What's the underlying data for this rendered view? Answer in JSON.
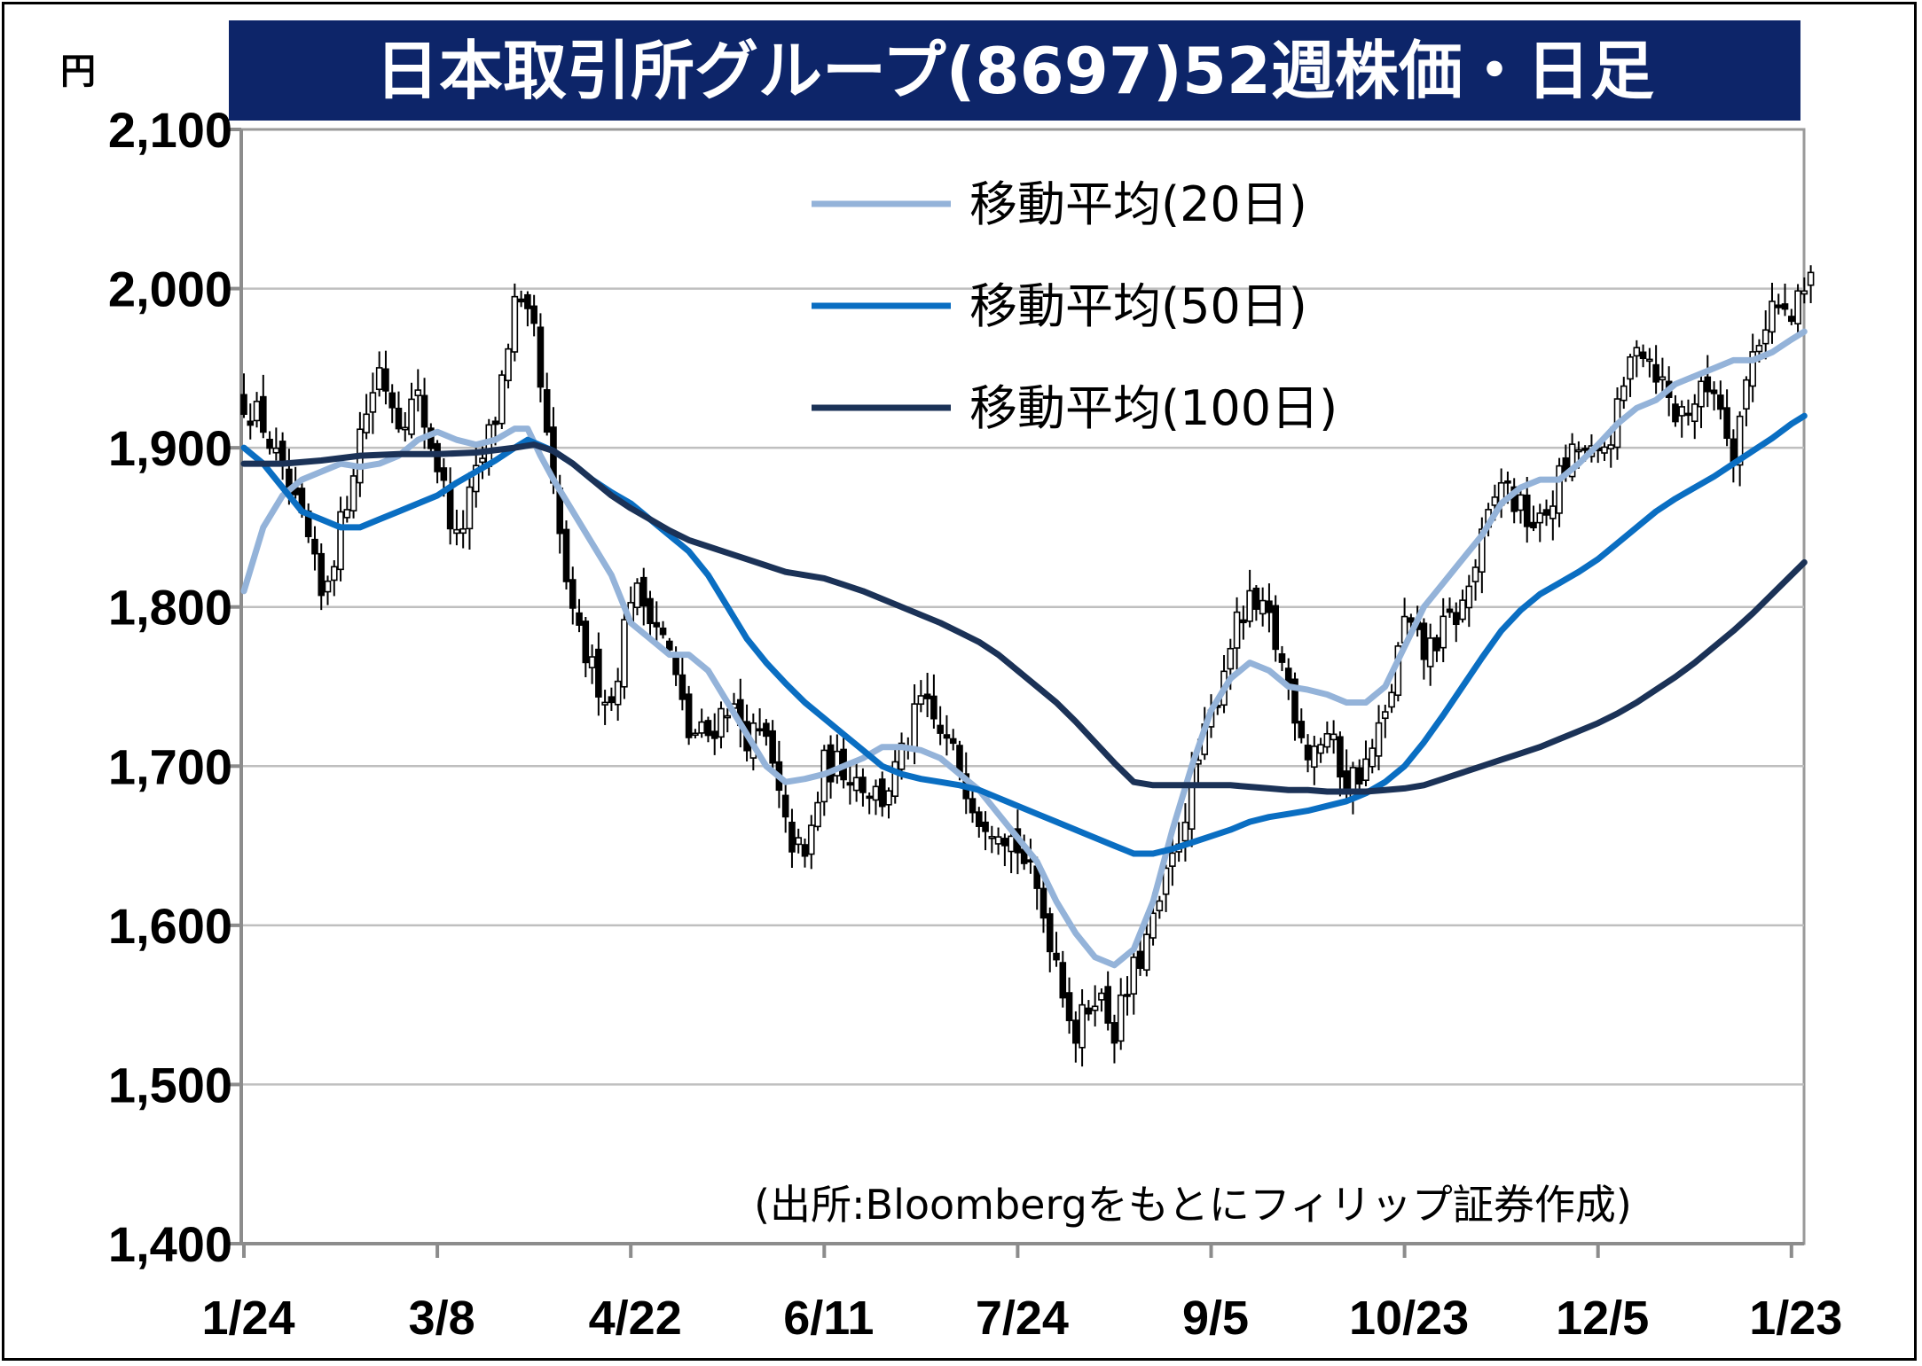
{
  "chart_data": {
    "type": "candlestick",
    "title": "日本取引所グループ(8697)52週株価・日足",
    "unit": "円",
    "source": "(出所:Bloombergをもとにフィリップ証券作成)",
    "ylim": [
      1400,
      2100
    ],
    "y_ticks": [
      {
        "value": 2100,
        "label": "2,100"
      },
      {
        "value": 2000,
        "label": "2,000"
      },
      {
        "value": 1900,
        "label": "1,900"
      },
      {
        "value": 1800,
        "label": "1,800"
      },
      {
        "value": 1700,
        "label": "1,700"
      },
      {
        "value": 1600,
        "label": "1,600"
      },
      {
        "value": 1500,
        "label": "1,500"
      },
      {
        "value": 1400,
        "label": "1,400"
      }
    ],
    "x_ticks": [
      {
        "index": 0,
        "label": "1/24"
      },
      {
        "index": 30,
        "label": "3/8"
      },
      {
        "index": 60,
        "label": "4/22"
      },
      {
        "index": 90,
        "label": "6/11"
      },
      {
        "index": 120,
        "label": "7/24"
      },
      {
        "index": 150,
        "label": "9/5"
      },
      {
        "index": 180,
        "label": "10/23"
      },
      {
        "index": 210,
        "label": "12/5"
      },
      {
        "index": 240,
        "label": "1/23"
      }
    ],
    "grid": true,
    "legend_position": "top-right",
    "colors": {
      "title_bg": "#0d2569",
      "ma20": "#94b3d9",
      "ma50": "#0a6ec2",
      "ma100": "#1b3257",
      "candle": "#000000",
      "grid": "#bfbfbf"
    },
    "price_anchors": [
      [
        0,
        1930
      ],
      [
        3,
        1915
      ],
      [
        6,
        1880
      ],
      [
        10,
        1840
      ],
      [
        12,
        1805
      ],
      [
        15,
        1850
      ],
      [
        18,
        1910
      ],
      [
        21,
        1950
      ],
      [
        24,
        1920
      ],
      [
        27,
        1930
      ],
      [
        30,
        1890
      ],
      [
        33,
        1840
      ],
      [
        36,
        1880
      ],
      [
        39,
        1920
      ],
      [
        42,
        1990
      ],
      [
        45,
        1970
      ],
      [
        48,
        1870
      ],
      [
        51,
        1790
      ],
      [
        54,
        1760
      ],
      [
        57,
        1740
      ],
      [
        60,
        1810
      ],
      [
        63,
        1800
      ],
      [
        66,
        1770
      ],
      [
        69,
        1720
      ],
      [
        72,
        1720
      ],
      [
        75,
        1740
      ],
      [
        78,
        1720
      ],
      [
        81,
        1715
      ],
      [
        84,
        1660
      ],
      [
        87,
        1640
      ],
      [
        90,
        1700
      ],
      [
        93,
        1700
      ],
      [
        96,
        1690
      ],
      [
        99,
        1680
      ],
      [
        102,
        1705
      ],
      [
        105,
        1740
      ],
      [
        108,
        1720
      ],
      [
        111,
        1700
      ],
      [
        114,
        1670
      ],
      [
        117,
        1665
      ],
      [
        120,
        1650
      ],
      [
        123,
        1620
      ],
      [
        126,
        1580
      ],
      [
        129,
        1530
      ],
      [
        132,
        1560
      ],
      [
        135,
        1535
      ],
      [
        138,
        1570
      ],
      [
        141,
        1600
      ],
      [
        144,
        1640
      ],
      [
        147,
        1690
      ],
      [
        150,
        1730
      ],
      [
        153,
        1780
      ],
      [
        156,
        1800
      ],
      [
        159,
        1790
      ],
      [
        162,
        1750
      ],
      [
        165,
        1710
      ],
      [
        168,
        1720
      ],
      [
        171,
        1690
      ],
      [
        174,
        1700
      ],
      [
        177,
        1730
      ],
      [
        180,
        1790
      ],
      [
        183,
        1770
      ],
      [
        186,
        1785
      ],
      [
        189,
        1800
      ],
      [
        192,
        1840
      ],
      [
        195,
        1880
      ],
      [
        198,
        1860
      ],
      [
        201,
        1850
      ],
      [
        204,
        1880
      ],
      [
        207,
        1900
      ],
      [
        210,
        1890
      ],
      [
        213,
        1920
      ],
      [
        216,
        1970
      ],
      [
        219,
        1950
      ],
      [
        222,
        1920
      ],
      [
        225,
        1930
      ],
      [
        228,
        1940
      ],
      [
        231,
        1900
      ],
      [
        234,
        1960
      ],
      [
        237,
        1990
      ],
      [
        240,
        1980
      ],
      [
        243,
        2005
      ]
    ],
    "series": [
      {
        "name": "移動平均(20日)",
        "key": "ma20",
        "points": [
          [
            0,
            1810
          ],
          [
            3,
            1850
          ],
          [
            6,
            1870
          ],
          [
            9,
            1880
          ],
          [
            12,
            1885
          ],
          [
            15,
            1890
          ],
          [
            18,
            1888
          ],
          [
            21,
            1890
          ],
          [
            24,
            1895
          ],
          [
            27,
            1905
          ],
          [
            30,
            1910
          ],
          [
            33,
            1905
          ],
          [
            36,
            1902
          ],
          [
            39,
            1905
          ],
          [
            42,
            1912
          ],
          [
            44,
            1912
          ],
          [
            46,
            1895
          ],
          [
            48,
            1880
          ],
          [
            51,
            1860
          ],
          [
            54,
            1840
          ],
          [
            57,
            1820
          ],
          [
            60,
            1790
          ],
          [
            63,
            1780
          ],
          [
            66,
            1770
          ],
          [
            69,
            1770
          ],
          [
            72,
            1760
          ],
          [
            75,
            1740
          ],
          [
            78,
            1720
          ],
          [
            81,
            1700
          ],
          [
            84,
            1690
          ],
          [
            87,
            1692
          ],
          [
            90,
            1695
          ],
          [
            93,
            1700
          ],
          [
            96,
            1705
          ],
          [
            99,
            1712
          ],
          [
            102,
            1712
          ],
          [
            105,
            1710
          ],
          [
            108,
            1705
          ],
          [
            111,
            1695
          ],
          [
            114,
            1685
          ],
          [
            117,
            1670
          ],
          [
            120,
            1655
          ],
          [
            123,
            1640
          ],
          [
            126,
            1615
          ],
          [
            129,
            1595
          ],
          [
            132,
            1580
          ],
          [
            135,
            1575
          ],
          [
            138,
            1585
          ],
          [
            141,
            1615
          ],
          [
            144,
            1660
          ],
          [
            147,
            1700
          ],
          [
            150,
            1735
          ],
          [
            153,
            1755
          ],
          [
            156,
            1765
          ],
          [
            159,
            1760
          ],
          [
            162,
            1750
          ],
          [
            165,
            1748
          ],
          [
            168,
            1745
          ],
          [
            171,
            1740
          ],
          [
            174,
            1740
          ],
          [
            177,
            1750
          ],
          [
            180,
            1775
          ],
          [
            183,
            1800
          ],
          [
            186,
            1815
          ],
          [
            189,
            1830
          ],
          [
            192,
            1845
          ],
          [
            195,
            1865
          ],
          [
            198,
            1875
          ],
          [
            201,
            1880
          ],
          [
            204,
            1880
          ],
          [
            207,
            1890
          ],
          [
            210,
            1902
          ],
          [
            213,
            1915
          ],
          [
            216,
            1925
          ],
          [
            219,
            1930
          ],
          [
            222,
            1940
          ],
          [
            225,
            1945
          ],
          [
            228,
            1950
          ],
          [
            231,
            1955
          ],
          [
            234,
            1955
          ],
          [
            237,
            1960
          ],
          [
            240,
            1968
          ],
          [
            242,
            1973
          ]
        ]
      },
      {
        "name": "移動平均(50日)",
        "key": "ma50",
        "points": [
          [
            0,
            1900
          ],
          [
            3,
            1890
          ],
          [
            6,
            1875
          ],
          [
            9,
            1860
          ],
          [
            12,
            1855
          ],
          [
            15,
            1850
          ],
          [
            18,
            1850
          ],
          [
            21,
            1855
          ],
          [
            24,
            1860
          ],
          [
            27,
            1865
          ],
          [
            30,
            1870
          ],
          [
            33,
            1878
          ],
          [
            36,
            1885
          ],
          [
            39,
            1892
          ],
          [
            42,
            1900
          ],
          [
            44,
            1905
          ],
          [
            48,
            1898
          ],
          [
            51,
            1890
          ],
          [
            54,
            1880
          ],
          [
            57,
            1872
          ],
          [
            60,
            1865
          ],
          [
            63,
            1855
          ],
          [
            66,
            1845
          ],
          [
            69,
            1835
          ],
          [
            72,
            1820
          ],
          [
            75,
            1800
          ],
          [
            78,
            1780
          ],
          [
            81,
            1765
          ],
          [
            84,
            1752
          ],
          [
            87,
            1740
          ],
          [
            90,
            1730
          ],
          [
            93,
            1720
          ],
          [
            96,
            1710
          ],
          [
            99,
            1700
          ],
          [
            102,
            1695
          ],
          [
            105,
            1692
          ],
          [
            108,
            1690
          ],
          [
            111,
            1688
          ],
          [
            114,
            1685
          ],
          [
            117,
            1680
          ],
          [
            120,
            1675
          ],
          [
            123,
            1670
          ],
          [
            126,
            1665
          ],
          [
            129,
            1660
          ],
          [
            132,
            1655
          ],
          [
            135,
            1650
          ],
          [
            138,
            1645
          ],
          [
            141,
            1645
          ],
          [
            144,
            1648
          ],
          [
            147,
            1652
          ],
          [
            150,
            1656
          ],
          [
            153,
            1660
          ],
          [
            156,
            1665
          ],
          [
            159,
            1668
          ],
          [
            162,
            1670
          ],
          [
            165,
            1672
          ],
          [
            168,
            1675
          ],
          [
            171,
            1678
          ],
          [
            174,
            1683
          ],
          [
            177,
            1690
          ],
          [
            180,
            1700
          ],
          [
            183,
            1715
          ],
          [
            186,
            1732
          ],
          [
            189,
            1750
          ],
          [
            192,
            1768
          ],
          [
            195,
            1785
          ],
          [
            198,
            1798
          ],
          [
            201,
            1808
          ],
          [
            204,
            1815
          ],
          [
            207,
            1822
          ],
          [
            210,
            1830
          ],
          [
            213,
            1840
          ],
          [
            216,
            1850
          ],
          [
            219,
            1860
          ],
          [
            222,
            1868
          ],
          [
            225,
            1875
          ],
          [
            228,
            1882
          ],
          [
            231,
            1890
          ],
          [
            234,
            1898
          ],
          [
            237,
            1906
          ],
          [
            240,
            1915
          ],
          [
            242,
            1920
          ]
        ]
      },
      {
        "name": "移動平均(100日)",
        "key": "ma100",
        "points": [
          [
            0,
            1890
          ],
          [
            6,
            1890
          ],
          [
            12,
            1892
          ],
          [
            18,
            1895
          ],
          [
            24,
            1896
          ],
          [
            30,
            1896
          ],
          [
            36,
            1897
          ],
          [
            42,
            1900
          ],
          [
            45,
            1902
          ],
          [
            48,
            1898
          ],
          [
            51,
            1890
          ],
          [
            54,
            1880
          ],
          [
            57,
            1870
          ],
          [
            60,
            1862
          ],
          [
            63,
            1855
          ],
          [
            66,
            1848
          ],
          [
            69,
            1842
          ],
          [
            72,
            1838
          ],
          [
            75,
            1834
          ],
          [
            78,
            1830
          ],
          [
            81,
            1826
          ],
          [
            84,
            1822
          ],
          [
            87,
            1820
          ],
          [
            90,
            1818
          ],
          [
            93,
            1814
          ],
          [
            96,
            1810
          ],
          [
            99,
            1805
          ],
          [
            102,
            1800
          ],
          [
            105,
            1795
          ],
          [
            108,
            1790
          ],
          [
            111,
            1784
          ],
          [
            114,
            1778
          ],
          [
            117,
            1770
          ],
          [
            120,
            1760
          ],
          [
            123,
            1750
          ],
          [
            126,
            1740
          ],
          [
            129,
            1728
          ],
          [
            132,
            1715
          ],
          [
            135,
            1702
          ],
          [
            138,
            1690
          ],
          [
            141,
            1688
          ],
          [
            144,
            1688
          ],
          [
            147,
            1688
          ],
          [
            150,
            1688
          ],
          [
            153,
            1688
          ],
          [
            156,
            1687
          ],
          [
            159,
            1686
          ],
          [
            162,
            1685
          ],
          [
            165,
            1685
          ],
          [
            168,
            1684
          ],
          [
            171,
            1684
          ],
          [
            174,
            1684
          ],
          [
            177,
            1685
          ],
          [
            180,
            1686
          ],
          [
            183,
            1688
          ],
          [
            186,
            1692
          ],
          [
            189,
            1696
          ],
          [
            192,
            1700
          ],
          [
            195,
            1704
          ],
          [
            198,
            1708
          ],
          [
            201,
            1712
          ],
          [
            204,
            1717
          ],
          [
            207,
            1722
          ],
          [
            210,
            1727
          ],
          [
            213,
            1733
          ],
          [
            216,
            1740
          ],
          [
            219,
            1748
          ],
          [
            222,
            1756
          ],
          [
            225,
            1765
          ],
          [
            228,
            1775
          ],
          [
            231,
            1785
          ],
          [
            234,
            1796
          ],
          [
            237,
            1808
          ],
          [
            240,
            1820
          ],
          [
            242,
            1828
          ]
        ]
      }
    ]
  }
}
